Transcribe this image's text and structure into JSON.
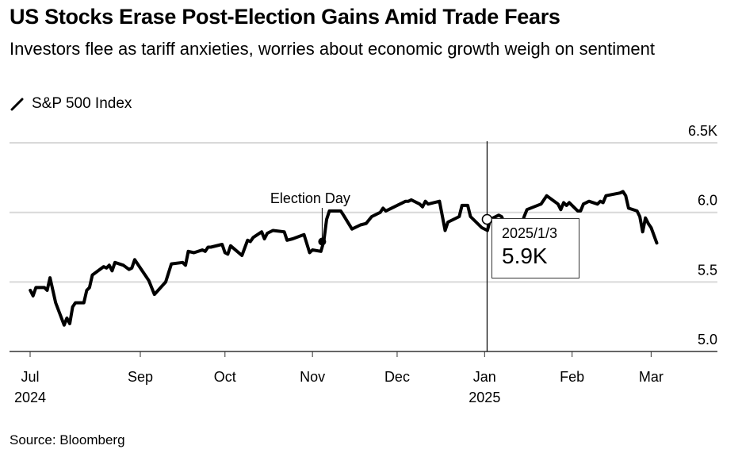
{
  "header": {
    "title": "US Stocks Erase Post-Election Gains Amid Trade Fears",
    "subtitle": "Investors flee as tariff anxieties, worries about economic growth weigh on sentiment"
  },
  "footer": {
    "source": "Source: Bloomberg"
  },
  "tooltip": {
    "date": "2025/1/3",
    "value": "5.9K"
  },
  "chart_data": {
    "type": "line",
    "title": "US Stocks Erase Post-Election Gains Amid Trade Fears",
    "legend": [
      {
        "name": "S&P 500 Index",
        "color": "#000000"
      }
    ],
    "ylabel": "",
    "xlabel": "",
    "ylim": [
      5.0,
      6.5
    ],
    "y_unit": "K",
    "y_ticks": [
      {
        "value": 6.5,
        "label": "6.5K"
      },
      {
        "value": 6.0,
        "label": "6.0"
      },
      {
        "value": 5.5,
        "label": "5.5"
      },
      {
        "value": 5.0,
        "label": "5.0"
      }
    ],
    "x_ticks": [
      {
        "date": "2024-07-24",
        "label": "Jul",
        "year": "2024"
      },
      {
        "date": "2024-09-01",
        "label": "Sep"
      },
      {
        "date": "2024-10-01",
        "label": "Oct"
      },
      {
        "date": "2024-11-01",
        "label": "Nov"
      },
      {
        "date": "2024-12-01",
        "label": "Dec"
      },
      {
        "date": "2025-01-01",
        "label": "Jan",
        "year": "2025"
      },
      {
        "date": "2025-02-01",
        "label": "Feb"
      },
      {
        "date": "2025-03-01",
        "label": "Mar"
      }
    ],
    "grid": true,
    "annotations": [
      {
        "date": "2024-11-05",
        "value": 5.79,
        "label": "Election Day"
      }
    ],
    "highlight": {
      "date": "2025-01-03",
      "value": 5.95
    },
    "series": [
      {
        "name": "S&P 500 Index",
        "points": [
          [
            "2024-07-24",
            5.44
          ],
          [
            "2024-07-25",
            5.4
          ],
          [
            "2024-07-26",
            5.46
          ],
          [
            "2024-07-29",
            5.46
          ],
          [
            "2024-07-30",
            5.44
          ],
          [
            "2024-07-31",
            5.53
          ],
          [
            "2024-08-02",
            5.35
          ],
          [
            "2024-08-05",
            5.19
          ],
          [
            "2024-08-06",
            5.24
          ],
          [
            "2024-08-07",
            5.2
          ],
          [
            "2024-08-08",
            5.32
          ],
          [
            "2024-08-09",
            5.35
          ],
          [
            "2024-08-12",
            5.35
          ],
          [
            "2024-08-13",
            5.44
          ],
          [
            "2024-08-14",
            5.46
          ],
          [
            "2024-08-15",
            5.55
          ],
          [
            "2024-08-19",
            5.61
          ],
          [
            "2024-08-20",
            5.6
          ],
          [
            "2024-08-21",
            5.62
          ],
          [
            "2024-08-22",
            5.58
          ],
          [
            "2024-08-23",
            5.64
          ],
          [
            "2024-08-26",
            5.62
          ],
          [
            "2024-08-28",
            5.59
          ],
          [
            "2024-08-29",
            5.6
          ],
          [
            "2024-08-30",
            5.66
          ],
          [
            "2024-09-03",
            5.54
          ],
          [
            "2024-09-04",
            5.51
          ],
          [
            "2024-09-06",
            5.41
          ],
          [
            "2024-09-10",
            5.5
          ],
          [
            "2024-09-12",
            5.63
          ],
          [
            "2024-09-16",
            5.64
          ],
          [
            "2024-09-17",
            5.62
          ],
          [
            "2024-09-18",
            5.72
          ],
          [
            "2024-09-20",
            5.71
          ],
          [
            "2024-09-23",
            5.73
          ],
          [
            "2024-09-24",
            5.72
          ],
          [
            "2024-09-25",
            5.75
          ],
          [
            "2024-09-26",
            5.75
          ],
          [
            "2024-09-30",
            5.77
          ],
          [
            "2024-10-01",
            5.71
          ],
          [
            "2024-10-02",
            5.7
          ],
          [
            "2024-10-03",
            5.76
          ],
          [
            "2024-10-07",
            5.69
          ],
          [
            "2024-10-09",
            5.8
          ],
          [
            "2024-10-10",
            5.79
          ],
          [
            "2024-10-11",
            5.82
          ],
          [
            "2024-10-14",
            5.86
          ],
          [
            "2024-10-15",
            5.81
          ],
          [
            "2024-10-16",
            5.85
          ],
          [
            "2024-10-18",
            5.87
          ],
          [
            "2024-10-22",
            5.86
          ],
          [
            "2024-10-23",
            5.8
          ],
          [
            "2024-10-25",
            5.81
          ],
          [
            "2024-10-29",
            5.84
          ],
          [
            "2024-10-31",
            5.71
          ],
          [
            "2024-11-01",
            5.73
          ],
          [
            "2024-11-04",
            5.72
          ],
          [
            "2024-11-05",
            5.79
          ],
          [
            "2024-11-06",
            5.95
          ],
          [
            "2024-11-07",
            6.01
          ],
          [
            "2024-11-11",
            6.01
          ],
          [
            "2024-11-12",
            5.98
          ],
          [
            "2024-11-15",
            5.88
          ],
          [
            "2024-11-18",
            5.91
          ],
          [
            "2024-11-20",
            5.92
          ],
          [
            "2024-11-22",
            5.97
          ],
          [
            "2024-11-25",
            6.0
          ],
          [
            "2024-11-26",
            6.03
          ],
          [
            "2024-11-27",
            6.01
          ],
          [
            "2024-11-29",
            6.03
          ],
          [
            "2024-12-02",
            6.06
          ],
          [
            "2024-12-04",
            6.08
          ],
          [
            "2024-12-05",
            6.08
          ],
          [
            "2024-12-06",
            6.09
          ],
          [
            "2024-12-09",
            6.06
          ],
          [
            "2024-12-10",
            6.04
          ],
          [
            "2024-12-11",
            6.08
          ],
          [
            "2024-12-12",
            6.06
          ],
          [
            "2024-12-16",
            6.08
          ],
          [
            "2024-12-18",
            5.87
          ],
          [
            "2024-12-19",
            5.93
          ],
          [
            "2024-12-23",
            5.97
          ],
          [
            "2024-12-24",
            6.05
          ],
          [
            "2024-12-26",
            6.05
          ],
          [
            "2024-12-27",
            5.97
          ],
          [
            "2024-12-31",
            5.89
          ],
          [
            "2025-01-02",
            5.87
          ],
          [
            "2025-01-03",
            5.95
          ],
          [
            "2025-01-06",
            5.98
          ],
          [
            "2025-01-07",
            5.97
          ],
          [
            "2025-01-10",
            5.84
          ],
          [
            "2025-01-13",
            5.85
          ],
          [
            "2025-01-15",
            5.97
          ],
          [
            "2025-01-16",
            6.02
          ],
          [
            "2025-01-21",
            6.06
          ],
          [
            "2025-01-23",
            6.12
          ],
          [
            "2025-01-27",
            6.06
          ],
          [
            "2025-01-28",
            6.02
          ],
          [
            "2025-01-29",
            6.07
          ],
          [
            "2025-01-30",
            6.05
          ],
          [
            "2025-01-31",
            6.07
          ],
          [
            "2025-02-03",
            6.01
          ],
          [
            "2025-02-04",
            6.01
          ],
          [
            "2025-02-05",
            6.06
          ],
          [
            "2025-02-07",
            6.08
          ],
          [
            "2025-02-10",
            6.06
          ],
          [
            "2025-02-11",
            6.08
          ],
          [
            "2025-02-12",
            6.07
          ],
          [
            "2025-02-13",
            6.12
          ],
          [
            "2025-02-18",
            6.14
          ],
          [
            "2025-02-19",
            6.15
          ],
          [
            "2025-02-20",
            6.12
          ],
          [
            "2025-02-21",
            6.03
          ],
          [
            "2025-02-24",
            6.01
          ],
          [
            "2025-02-25",
            5.97
          ],
          [
            "2025-02-26",
            5.86
          ],
          [
            "2025-02-27",
            5.96
          ],
          [
            "2025-02-28",
            5.92
          ],
          [
            "2025-03-01",
            5.89
          ],
          [
            "2025-03-03",
            5.78
          ]
        ]
      }
    ]
  }
}
